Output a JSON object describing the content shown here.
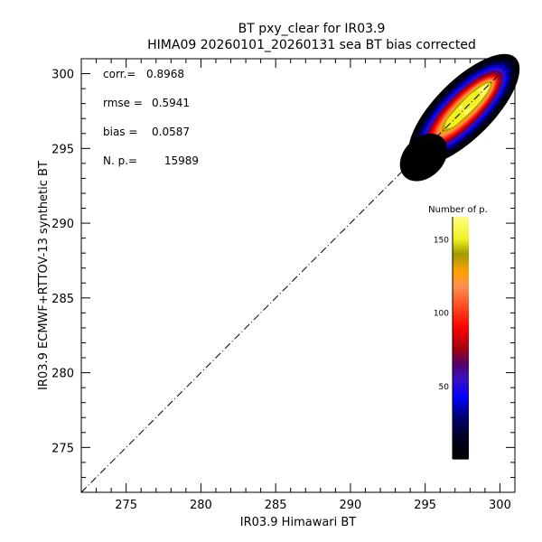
{
  "chart_data": {
    "type": "heatmap",
    "title": "BT pxy_clear for IR03.9",
    "subtitle": "HIMA09 20260101_20260131 sea BT bias corrected",
    "xlabel": "IR03.9 Himawari BT",
    "ylabel": "IR03.9 ECMWF+RTTOV-13 synthetic BT",
    "xlim": [
      272,
      301
    ],
    "ylim": [
      272,
      301
    ],
    "x_major_ticks": [
      275,
      280,
      285,
      290,
      295,
      300
    ],
    "y_major_ticks": [
      275,
      280,
      285,
      290,
      295,
      300
    ],
    "minor_tick_step": 1,
    "reference_line": "y = x (dash-dot)",
    "stats": [
      {
        "label": "corr.=",
        "value": "0.8968"
      },
      {
        "label": "rmse =",
        "value": "0.5941"
      },
      {
        "label": "bias =",
        "value": "0.0587"
      },
      {
        "label": "N. p.=",
        "value": "15989"
      }
    ],
    "density": {
      "center": [
        297.6,
        297.6
      ],
      "x_extent": [
        293.9,
        300.5
      ],
      "y_extent": [
        293.2,
        300.4
      ],
      "peak_count": 165,
      "peaks": [
        [
          297.0,
          297.0
        ],
        [
          298.1,
          298.2
        ]
      ]
    },
    "colorbar": {
      "title": "Number of p.",
      "range": [
        0,
        165
      ],
      "ticks": [
        50,
        100,
        150
      ],
      "colors": [
        {
          "v": 0,
          "c": "#000000"
        },
        {
          "v": 15,
          "c": "#000022"
        },
        {
          "v": 30,
          "c": "#00007a"
        },
        {
          "v": 42,
          "c": "#0000ff"
        },
        {
          "v": 55,
          "c": "#3a10c0"
        },
        {
          "v": 65,
          "c": "#55006a"
        },
        {
          "v": 75,
          "c": "#a00010"
        },
        {
          "v": 90,
          "c": "#ff0000"
        },
        {
          "v": 105,
          "c": "#ff5020"
        },
        {
          "v": 118,
          "c": "#ff9050"
        },
        {
          "v": 128,
          "c": "#ffa000"
        },
        {
          "v": 140,
          "c": "#a09a00"
        },
        {
          "v": 150,
          "c": "#f0f020"
        },
        {
          "v": 165,
          "c": "#ffff80"
        }
      ]
    }
  }
}
